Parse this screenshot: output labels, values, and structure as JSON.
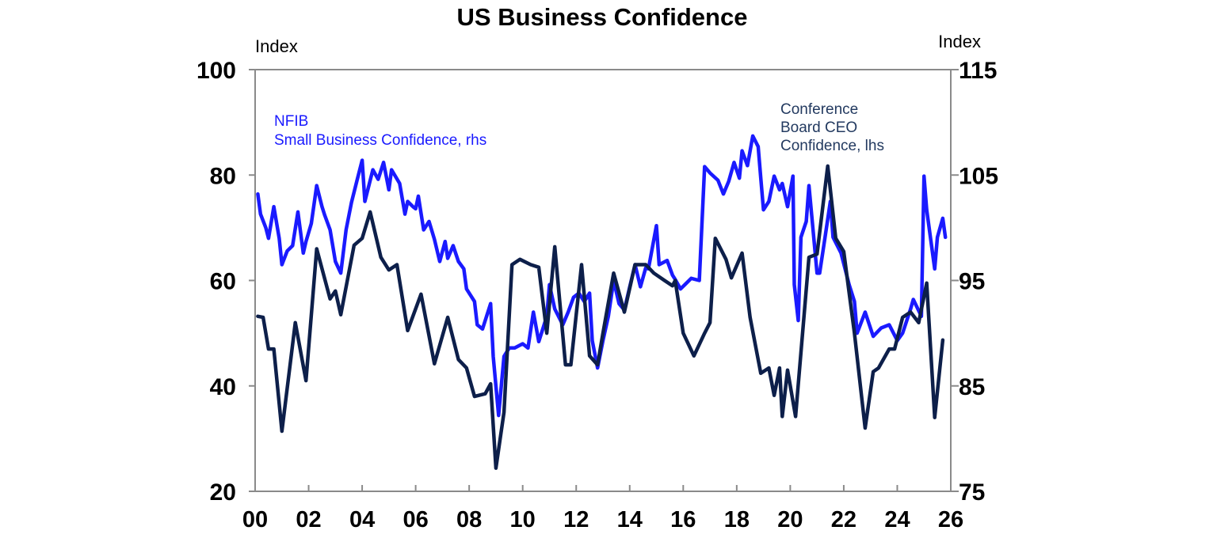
{
  "chart_data": {
    "type": "line",
    "title": "US Business Confidence",
    "left_axis": {
      "unit_label": "Index",
      "ylim": [
        20,
        100
      ],
      "ticks": [
        "100",
        "80",
        "60",
        "40",
        "20"
      ]
    },
    "right_axis": {
      "unit_label": "Index",
      "ylim": [
        75,
        115
      ],
      "ticks": [
        "115",
        "105",
        "95",
        "85",
        "75"
      ]
    },
    "x_axis": {
      "xlim": [
        2000,
        2026
      ],
      "tick_labels": [
        "00",
        "02",
        "04",
        "06",
        "08",
        "10",
        "12",
        "14",
        "16",
        "18",
        "20",
        "22",
        "24",
        "26"
      ]
    },
    "grid": false,
    "series": [
      {
        "name": "NFIB Small Business Confidence, rhs",
        "label_lines": [
          "NFIB",
          "Small Business Confidence, rhs"
        ],
        "axis": "right",
        "color": "#1a1aff",
        "x": [
          2000.1,
          2000.2,
          2000.4,
          2000.5,
          2000.7,
          2000.9,
          2001.0,
          2001.2,
          2001.4,
          2001.6,
          2001.8,
          2001.9,
          2002.1,
          2002.3,
          2002.5,
          2002.6,
          2002.8,
          2003.0,
          2003.2,
          2003.4,
          2003.6,
          2003.8,
          2004.0,
          2004.1,
          2004.4,
          2004.6,
          2004.8,
          2005.0,
          2005.1,
          2005.4,
          2005.6,
          2005.7,
          2005.9,
          2006.0,
          2006.1,
          2006.3,
          2006.5,
          2006.7,
          2006.9,
          2007.1,
          2007.2,
          2007.4,
          2007.6,
          2007.8,
          2007.9,
          2008.2,
          2008.3,
          2008.5,
          2008.8,
          2008.9,
          2009.1,
          2009.3,
          2009.5,
          2009.7,
          2010.0,
          2010.2,
          2010.4,
          2010.6,
          2010.9,
          2011.0,
          2011.2,
          2011.5,
          2011.7,
          2011.9,
          2012.1,
          2012.3,
          2012.5,
          2012.6,
          2012.8,
          2013.0,
          2013.2,
          2013.4,
          2013.6,
          2013.8,
          2014.0,
          2014.2,
          2014.4,
          2014.6,
          2014.7,
          2015.0,
          2015.1,
          2015.4,
          2015.6,
          2015.7,
          2015.9,
          2016.1,
          2016.3,
          2016.6,
          2016.8,
          2017.0,
          2017.3,
          2017.5,
          2017.7,
          2017.9,
          2018.1,
          2018.2,
          2018.4,
          2018.6,
          2018.8,
          2018.9,
          2019.0,
          2019.2,
          2019.4,
          2019.6,
          2019.7,
          2019.9,
          2020.1,
          2020.15,
          2020.3,
          2020.4,
          2020.6,
          2020.7,
          2021.0,
          2021.1,
          2021.3,
          2021.5,
          2021.6,
          2021.9,
          2022.2,
          2022.4,
          2022.5,
          2022.8,
          2023.1,
          2023.4,
          2023.7,
          2024.0,
          2024.2,
          2024.5,
          2024.6,
          2024.9,
          2025.0,
          2025.1,
          2025.4,
          2025.5,
          2025.7,
          2025.8
        ],
        "y": [
          103.2,
          101.3,
          100,
          99,
          102,
          99,
          96.5,
          97.8,
          98.3,
          101.5,
          97.6,
          98.7,
          100.4,
          104,
          102,
          101.2,
          99.8,
          96.8,
          95.7,
          99.8,
          102.4,
          104.4,
          106.4,
          102.5,
          105.5,
          104.6,
          106.2,
          103.6,
          105.5,
          104.2,
          101.3,
          102.5,
          102,
          101.8,
          103,
          99.8,
          100.6,
          98.9,
          96.8,
          98.7,
          97.1,
          98.3,
          96.8,
          96.1,
          94.2,
          93,
          90.8,
          90.4,
          92.8,
          87.8,
          82.2,
          87.8,
          88.6,
          88.6,
          89,
          88.6,
          92,
          89.2,
          91.6,
          94.6,
          92.3,
          90.8,
          92,
          93.4,
          93.8,
          93,
          93.8,
          89.3,
          86.7,
          89.3,
          91.6,
          95,
          92.8,
          92.2,
          94.4,
          96.5,
          94.4,
          96.2,
          96.1,
          100.2,
          96.5,
          96.9,
          95.5,
          95.1,
          94.2,
          94.7,
          95.2,
          95,
          105.8,
          105.2,
          104.5,
          103.2,
          104.4,
          106.2,
          104.7,
          107.3,
          105.9,
          108.7,
          107.7,
          104.7,
          101.7,
          102.5,
          104.9,
          103.6,
          104.2,
          102,
          104.9,
          94.6,
          91.2,
          99.1,
          100.6,
          104,
          95.7,
          95.7,
          99.1,
          102.5,
          99.1,
          97.6,
          94.6,
          93,
          90,
          92,
          89.7,
          90.5,
          90.8,
          89.3,
          90,
          92.3,
          93.2,
          91.6,
          104.9,
          101.7,
          96.1,
          99.1,
          100.9,
          99.1
        ]
      },
      {
        "name": "Conference Board CEO Confidence, lhs",
        "label_lines": [
          "Conference",
          "Board CEO",
          "Confidence, lhs"
        ],
        "axis": "left",
        "color": "#0d1f4a",
        "x": [
          2000.1,
          2000.3,
          2000.5,
          2000.7,
          2001.0,
          2001.5,
          2001.9,
          2002.3,
          2002.8,
          2003.0,
          2003.2,
          2003.7,
          2004.0,
          2004.3,
          2004.7,
          2005.0,
          2005.3,
          2005.7,
          2006.2,
          2006.7,
          2007.2,
          2007.6,
          2007.9,
          2008.2,
          2008.6,
          2008.8,
          2009.0,
          2009.3,
          2009.6,
          2009.9,
          2010.3,
          2010.6,
          2010.9,
          2011.2,
          2011.6,
          2011.8,
          2012.2,
          2012.5,
          2012.8,
          2013.0,
          2013.4,
          2013.8,
          2014.2,
          2014.6,
          2014.9,
          2015.3,
          2015.6,
          2015.7,
          2016.0,
          2016.4,
          2016.8,
          2017.0,
          2017.2,
          2017.6,
          2017.8,
          2018.2,
          2018.5,
          2018.9,
          2019.2,
          2019.4,
          2019.6,
          2019.7,
          2019.9,
          2020.2,
          2020.7,
          2021.0,
          2021.4,
          2021.7,
          2022.0,
          2022.4,
          2022.8,
          2023.1,
          2023.3,
          2023.7,
          2023.9,
          2024.2,
          2024.5,
          2024.8,
          2025.1,
          2025.4,
          2025.7
        ],
        "y": [
          53.2,
          53,
          47,
          47,
          31.4,
          52,
          41,
          66,
          56.5,
          58,
          53.5,
          66.7,
          68,
          73,
          64.4,
          62,
          63,
          50.5,
          57.4,
          44.2,
          53,
          45,
          43.4,
          38,
          38.5,
          40.4,
          24.4,
          35,
          63,
          64,
          63,
          62.5,
          50,
          66.4,
          44,
          44,
          63,
          45.7,
          44,
          50,
          61.4,
          54,
          63,
          63,
          61.4,
          60,
          59,
          60,
          50,
          45.7,
          50,
          52,
          68,
          64,
          60.5,
          65.2,
          53,
          42.4,
          43.4,
          38.2,
          43.4,
          34.2,
          43,
          34.2,
          64.4,
          65,
          81.7,
          68,
          65.5,
          50,
          32,
          42.7,
          43.4,
          47,
          47,
          53,
          54,
          52,
          59.5,
          34,
          48.7
        ]
      }
    ]
  }
}
